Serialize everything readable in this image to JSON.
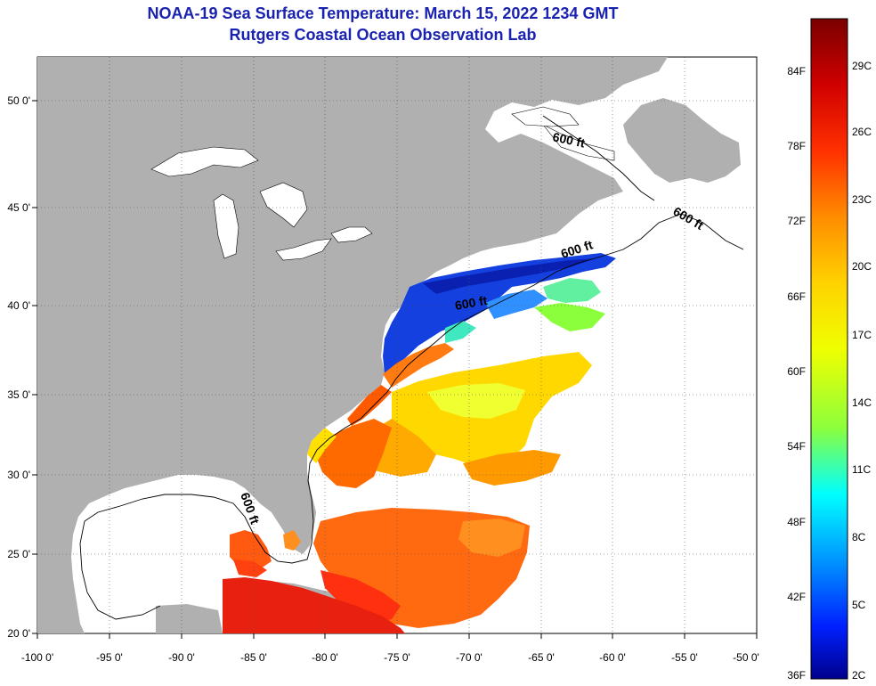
{
  "title": "NOAA-19 Sea Surface Temperature:  March 15, 2022 1234 GMT",
  "subtitle": "Rutgers Coastal Ocean Observation Lab",
  "map": {
    "lon_range": [
      -100,
      -50
    ],
    "lat_range": [
      20,
      52.5
    ],
    "lon_tick_labels": [
      "-100 0'",
      "-95 0'",
      "-90 0'",
      "-85 0'",
      "-80 0'",
      "-75 0'",
      "-70 0'",
      "-65 0'",
      "-60 0'",
      "-55 0'",
      "-50 0'"
    ],
    "lat_tick_labels": [
      "20 0'",
      "25 0'",
      "30 0'",
      "35 0'",
      "40 0'",
      "45 0'",
      "50 0'"
    ],
    "grid": true,
    "contour_label": "600 ft",
    "colors": {
      "land": "#b0b0b0",
      "no_data": "#ffffff",
      "contour": "#000000"
    }
  },
  "colorbar": {
    "fahrenheit_labels": [
      "84F",
      "78F",
      "72F",
      "66F",
      "60F",
      "54F",
      "48F",
      "42F",
      "36F"
    ],
    "celsius_labels": [
      "29C",
      "26C",
      "23C",
      "20C",
      "17C",
      "14C",
      "11C",
      "8C",
      "5C",
      "2C"
    ],
    "colors": [
      "#7a0000",
      "#d00000",
      "#ff3000",
      "#ff8c00",
      "#ffd200",
      "#f0ff00",
      "#8cff3c",
      "#00ffff",
      "#0096ff",
      "#0020ff",
      "#00008c"
    ]
  }
}
